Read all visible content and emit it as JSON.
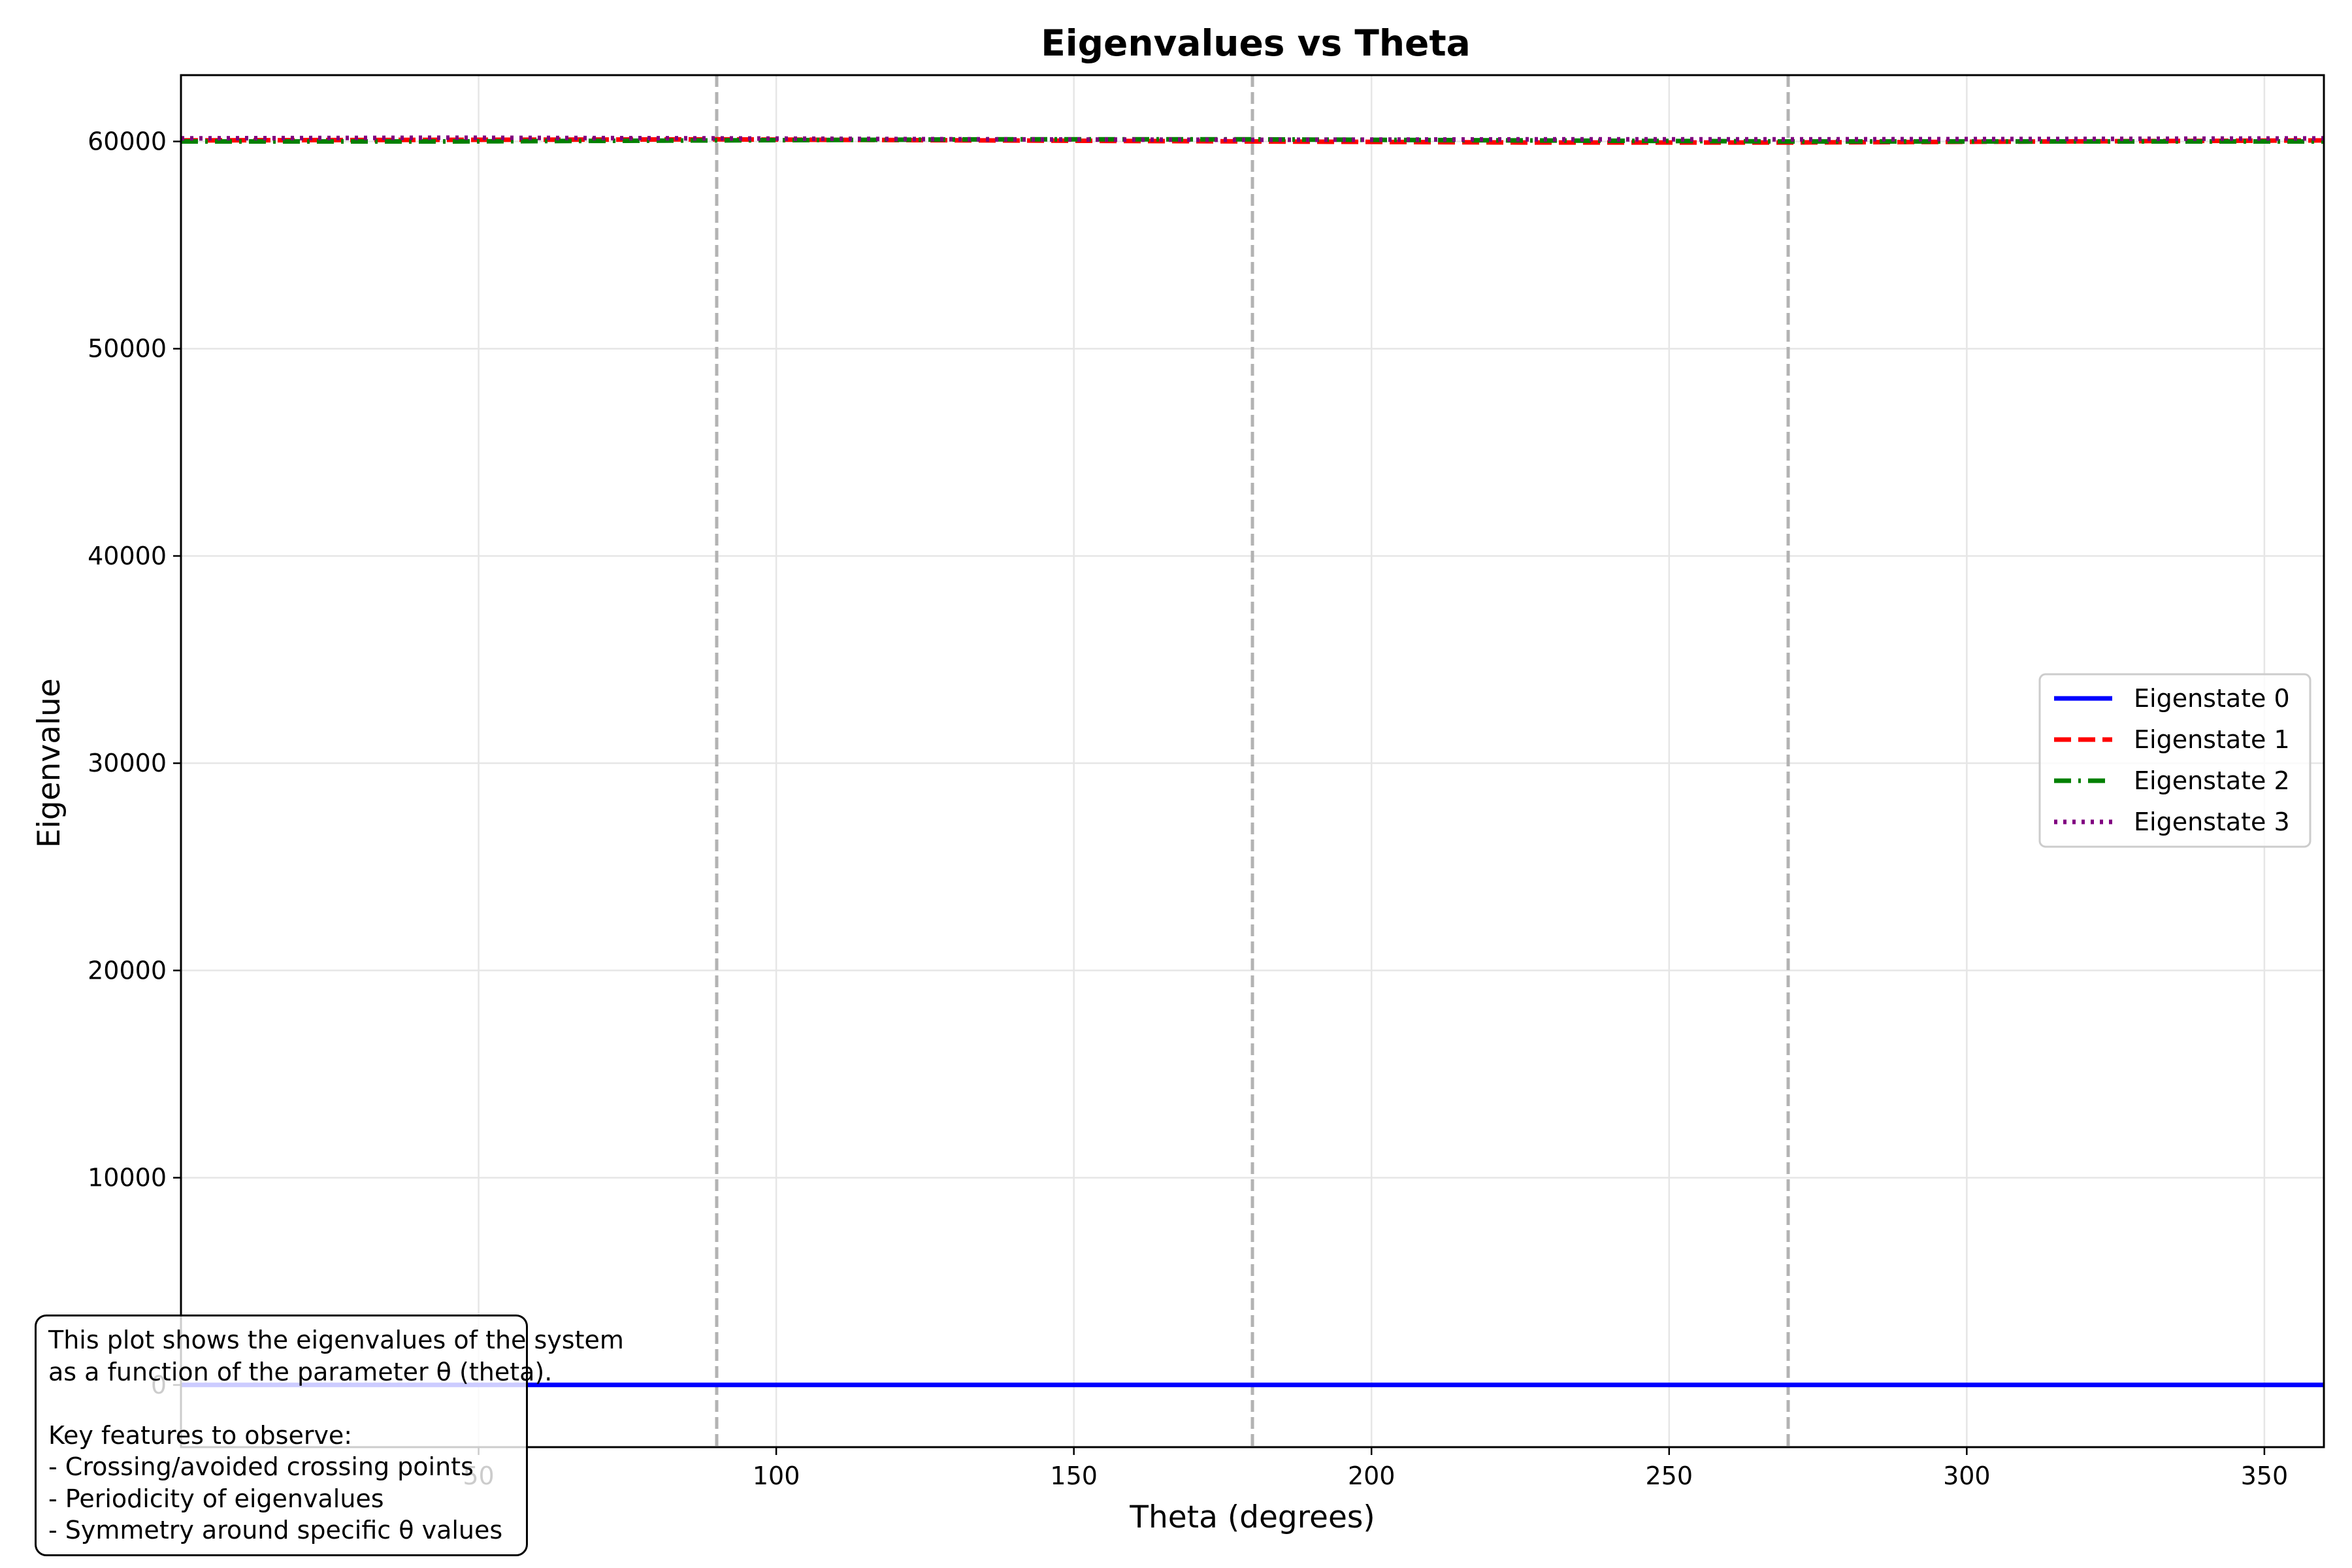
{
  "chart_data": {
    "type": "line",
    "title": "Eigenvalues vs Theta",
    "xlabel": "Theta (degrees)",
    "ylabel": "Eigenvalue",
    "xlim": [
      0,
      360
    ],
    "ylim": [
      -3000,
      63200
    ],
    "xticks": [
      50,
      100,
      150,
      200,
      250,
      300,
      350
    ],
    "yticks": [
      0,
      10000,
      20000,
      30000,
      40000,
      50000,
      60000
    ],
    "vlines": [
      90,
      180,
      270
    ],
    "grid": true,
    "legend_position": "center-right",
    "x": [
      0,
      45,
      90,
      135,
      180,
      225,
      270,
      315,
      360
    ],
    "series": [
      {
        "name": "Eigenstate 0",
        "color": "#0000ff",
        "linestyle": "solid",
        "values": [
          0,
          0,
          0,
          0,
          0,
          0,
          0,
          0,
          0
        ]
      },
      {
        "name": "Eigenstate 1",
        "color": "#ff0000",
        "linestyle": "dashed",
        "values": [
          60050,
          60080,
          60100,
          60050,
          60000,
          59950,
          59950,
          60000,
          60050
        ]
      },
      {
        "name": "Eigenstate 2",
        "color": "#008000",
        "linestyle": "dashdot",
        "values": [
          60000,
          60000,
          60050,
          60100,
          60100,
          60050,
          60000,
          60000,
          60000
        ]
      },
      {
        "name": "Eigenstate 3",
        "color": "#800080",
        "linestyle": "dotted",
        "values": [
          60150,
          60180,
          60150,
          60100,
          60080,
          60100,
          60100,
          60120,
          60150
        ]
      }
    ],
    "annotation": [
      "This plot shows the eigenvalues of the system",
      "as a function of the parameter θ (theta).",
      "",
      "Key features to observe:",
      "- Crossing/avoided crossing points",
      "- Periodicity of eigenvalues",
      "- Symmetry around specific θ values"
    ]
  }
}
